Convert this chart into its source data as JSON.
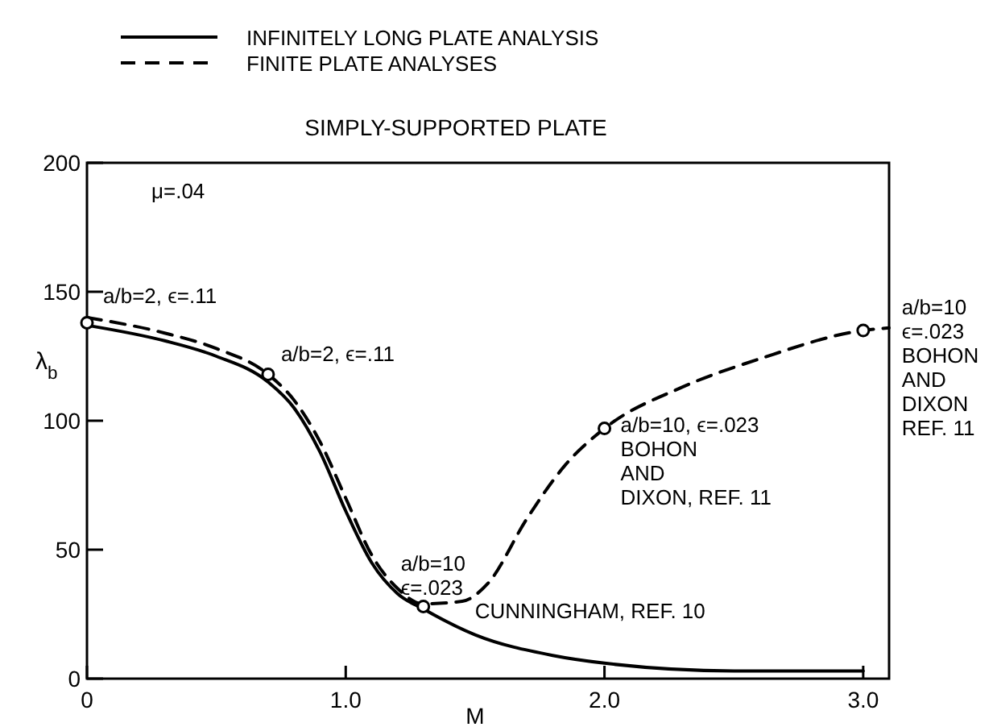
{
  "chart_data": {
    "type": "line",
    "title": "SIMPLY-SUPPORTED PLATE",
    "xlabel": "M",
    "ylabel": "λ$_{b}$",
    "xlim": [
      0,
      3.1
    ],
    "xticks": [
      0,
      {
        "value": 1,
        "label": "1.0"
      },
      {
        "value": 2,
        "label": "2.0"
      },
      {
        "value": 3,
        "label": "3.0"
      }
    ],
    "ylim": [
      0,
      200
    ],
    "yticks": [
      0,
      50,
      100,
      150,
      200
    ],
    "grid": false,
    "legend": "top",
    "marker": "none",
    "series": [
      {
        "name": "INFINITELY LONG PLATE ANALYSIS",
        "color": "#000000",
        "line_style": "solid",
        "x": [
          0,
          0.3,
          0.5,
          0.7,
          0.8,
          0.9,
          1.0,
          1.1,
          1.2,
          1.3,
          1.5,
          1.8,
          2.0,
          2.5,
          3.0
        ],
        "values": [
          137,
          131,
          125,
          115,
          105,
          88,
          65,
          45,
          33,
          27,
          17,
          9,
          6,
          3,
          3
        ]
      },
      {
        "name": "FINITE PLATE ANALYSES",
        "color": "#000000",
        "line_style": "dashed",
        "x": [
          0,
          0.3,
          0.5,
          0.7,
          0.8,
          0.9,
          1.0,
          1.1,
          1.2,
          1.3,
          1.45,
          1.55,
          1.7,
          1.85,
          2.0,
          2.3,
          2.6,
          3.0,
          3.1
        ],
        "values": [
          140,
          134,
          128,
          118,
          108,
          92,
          70,
          48,
          35,
          29,
          30,
          37,
          62,
          83,
          97,
          113,
          124,
          135,
          136
        ]
      },
      {
        "type": "scatter",
        "color": "#000000",
        "marker": "circle",
        "x": [
          0,
          0.7,
          1.3,
          2.0,
          3.0
        ],
        "values": [
          138,
          118,
          28,
          97,
          135
        ]
      }
    ],
    "annotations": [
      "μ=.04",
      {
        "text": "a/b=2, ϵ=.11",
        "x": 0,
        "y": 138
      },
      {
        "text": "a/b=2, ϵ=.11",
        "x": 0.7,
        "y": 118
      },
      {
        "text": "a/b=10\nϵ=.023",
        "x": 1.3,
        "y": 28
      },
      {
        "text": "CUNNINGHAM, REF. 10",
        "x": 1.35,
        "y": 24
      },
      {
        "text": "a/b=10, ϵ=.023\nBOHON\nAND\nDIXON, REF. 11",
        "x": 2.0,
        "y": 97
      },
      {
        "text": "a/b=10\nϵ=.023\nBOHON\nAND\nDIXON\nREF. 11",
        "x": 3.0,
        "y": 135
      }
    ]
  }
}
